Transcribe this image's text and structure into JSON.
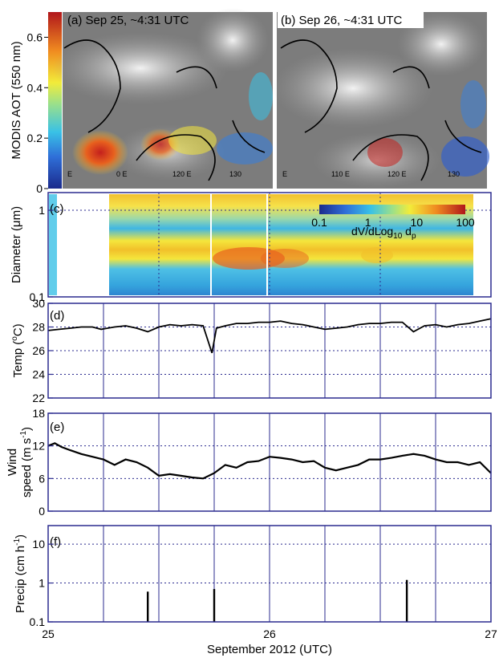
{
  "chart_data": [
    {
      "panel": "a",
      "type": "heatmap",
      "label": "(a) Sep 25, ~4:31 UTC",
      "colorbar": {
        "label": "MODIS AOT (550 nm)",
        "ticks": [
          "0",
          "0.2",
          "0.4",
          "0.6"
        ],
        "range": [
          0,
          0.7
        ]
      },
      "map_labels": [
        "E",
        "0 E",
        "120 E",
        "130"
      ]
    },
    {
      "panel": "b",
      "type": "heatmap",
      "label": "(b) Sep 26, ~4:31 UTC",
      "map_labels": [
        "E",
        "110 E",
        "120 E",
        "130"
      ]
    },
    {
      "panel": "c",
      "type": "heatmap",
      "label": "(c)",
      "ylabel": "Diameter (μm)",
      "yscale": "log",
      "ylim": [
        0.1,
        1.6
      ],
      "yticks": [
        "0.1",
        "1"
      ],
      "xlim": [
        25,
        27
      ],
      "colorbar": {
        "label": "dV/dLog10 dp",
        "ticks": [
          "0.1",
          "1",
          "10",
          "100"
        ],
        "range": [
          0.1,
          100
        ]
      }
    },
    {
      "panel": "d",
      "type": "line",
      "label": "(d)",
      "ylabel": "Temp (°C)",
      "ylim": [
        22,
        30
      ],
      "yticks": [
        "22",
        "24",
        "26",
        "28",
        "30"
      ],
      "xlim": [
        25,
        27
      ],
      "series": [
        {
          "x": [
            25.0,
            25.05,
            25.1,
            25.15,
            25.2,
            25.24,
            25.3,
            25.35,
            25.4,
            25.45,
            25.5,
            25.55,
            25.6,
            25.65,
            25.7,
            25.74,
            25.76,
            25.8,
            25.85,
            25.9,
            25.95,
            26.0,
            26.05,
            26.1,
            26.15,
            26.2,
            26.25,
            26.3,
            26.35,
            26.4,
            26.45,
            26.5,
            26.55,
            26.6,
            26.65,
            26.7,
            26.75,
            26.8,
            26.85,
            26.9,
            26.95,
            27.0
          ],
          "y": [
            27.7,
            27.8,
            27.9,
            28.0,
            28.0,
            27.8,
            28.0,
            28.1,
            27.9,
            27.6,
            28.0,
            28.2,
            28.1,
            28.2,
            28.1,
            25.8,
            27.9,
            28.1,
            28.3,
            28.3,
            28.4,
            28.4,
            28.5,
            28.3,
            28.2,
            28.0,
            27.8,
            27.9,
            28.0,
            28.2,
            28.3,
            28.3,
            28.4,
            28.4,
            27.6,
            28.1,
            28.2,
            28.0,
            28.2,
            28.3,
            28.5,
            28.7
          ]
        }
      ]
    },
    {
      "panel": "e",
      "type": "line",
      "label": "(e)",
      "ylabel": "Wind speed (m s⁻¹)",
      "ylim": [
        0,
        18
      ],
      "yticks": [
        "0",
        "6",
        "12",
        "18"
      ],
      "xlim": [
        25,
        27
      ],
      "series": [
        {
          "x": [
            25.0,
            25.03,
            25.06,
            25.1,
            25.15,
            25.2,
            25.25,
            25.3,
            25.35,
            25.4,
            25.45,
            25.5,
            25.55,
            25.6,
            25.65,
            25.7,
            25.75,
            25.8,
            25.85,
            25.9,
            25.95,
            26.0,
            26.05,
            26.1,
            26.15,
            26.2,
            26.25,
            26.3,
            26.35,
            26.4,
            26.45,
            26.5,
            26.55,
            26.6,
            26.65,
            26.7,
            26.75,
            26.8,
            26.85,
            26.9,
            26.95,
            27.0
          ],
          "y": [
            12.0,
            12.5,
            11.8,
            11.2,
            10.5,
            10.0,
            9.5,
            8.5,
            9.5,
            9.0,
            8.0,
            6.5,
            6.8,
            6.5,
            6.2,
            6.0,
            7.0,
            8.5,
            8.0,
            9.0,
            9.2,
            10.0,
            9.8,
            9.5,
            9.0,
            9.2,
            8.0,
            7.5,
            8.0,
            8.5,
            9.5,
            9.5,
            9.8,
            10.2,
            10.5,
            10.2,
            9.5,
            9.0,
            9.0,
            8.5,
            9.0,
            7.0
          ]
        }
      ]
    },
    {
      "panel": "f",
      "type": "bar",
      "label": "(f)",
      "ylabel": "Precip (cm h⁻¹)",
      "yscale": "log",
      "ylim": [
        0.1,
        30
      ],
      "yticks": [
        "0.1",
        "1",
        "10"
      ],
      "xlim": [
        25,
        27
      ],
      "xlabel": "September 2012 (UTC)",
      "xticks": [
        "25",
        "26",
        "27"
      ],
      "events": [
        {
          "x": 25.45,
          "y": 0.6
        },
        {
          "x": 25.75,
          "y": 0.7
        },
        {
          "x": 26.62,
          "y": 1.2
        },
        {
          "x": 26.85,
          "y": 0.1
        }
      ]
    }
  ]
}
